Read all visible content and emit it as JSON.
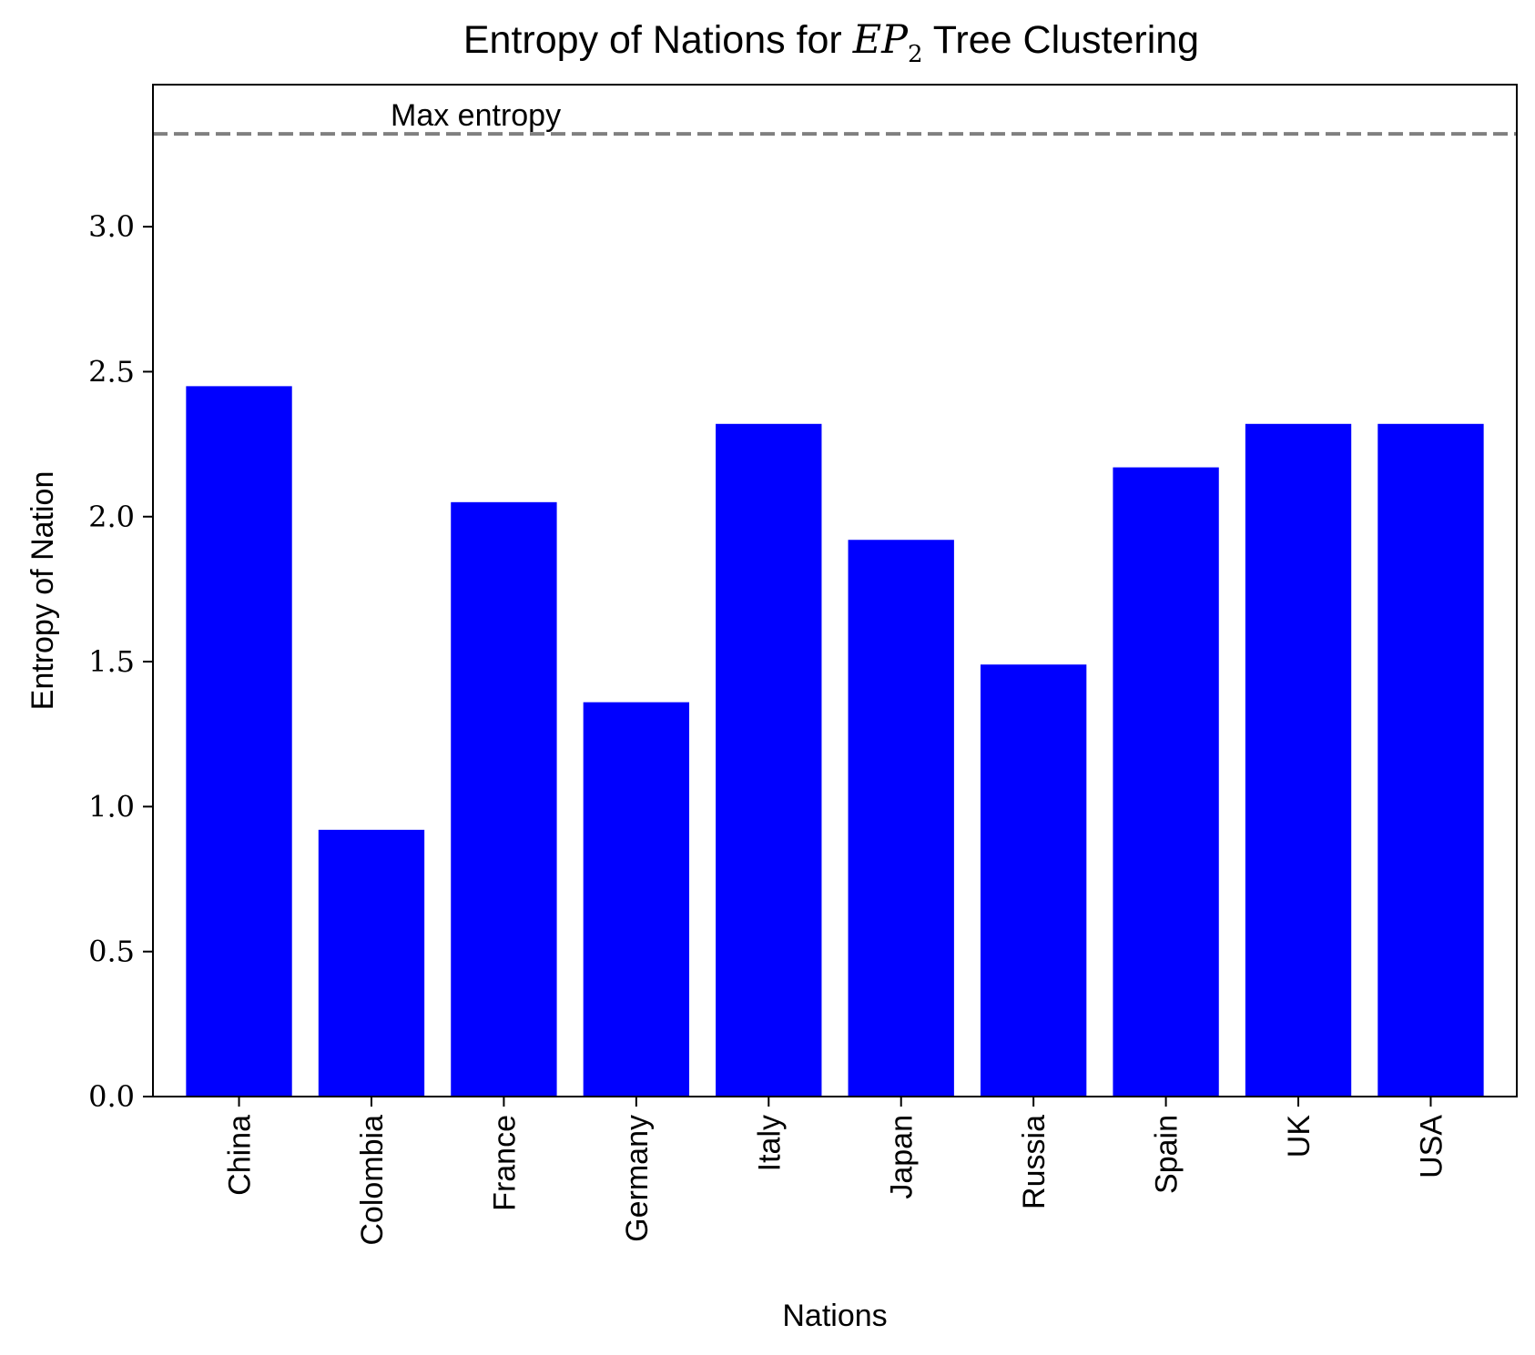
{
  "chart_data": {
    "type": "bar",
    "title_prefix": "Entropy of Nations for ",
    "title_math_base": "EP",
    "title_math_sub": "2",
    "title_suffix": " Tree Clustering",
    "xlabel": "Nations",
    "ylabel": "Entropy of Nation",
    "categories": [
      "China",
      "Colombia",
      "France",
      "Germany",
      "Italy",
      "Japan",
      "Russia",
      "Spain",
      "UK",
      "USA"
    ],
    "values": [
      2.45,
      0.92,
      2.05,
      1.36,
      2.32,
      1.92,
      1.49,
      2.17,
      2.32,
      2.32
    ],
    "ylim": [
      0,
      3.49
    ],
    "yticks": [
      0.0,
      0.5,
      1.0,
      1.5,
      2.0,
      2.5,
      3.0
    ],
    "ytick_labels": [
      "0.0",
      "0.5",
      "1.0",
      "1.5",
      "2.0",
      "2.5",
      "3.0"
    ],
    "bar_color": "#0000ff",
    "reference_line": {
      "label": "Max entropy",
      "value": 3.32,
      "color": "#808080",
      "style": "dashed"
    },
    "grid": false,
    "legend": "none"
  }
}
